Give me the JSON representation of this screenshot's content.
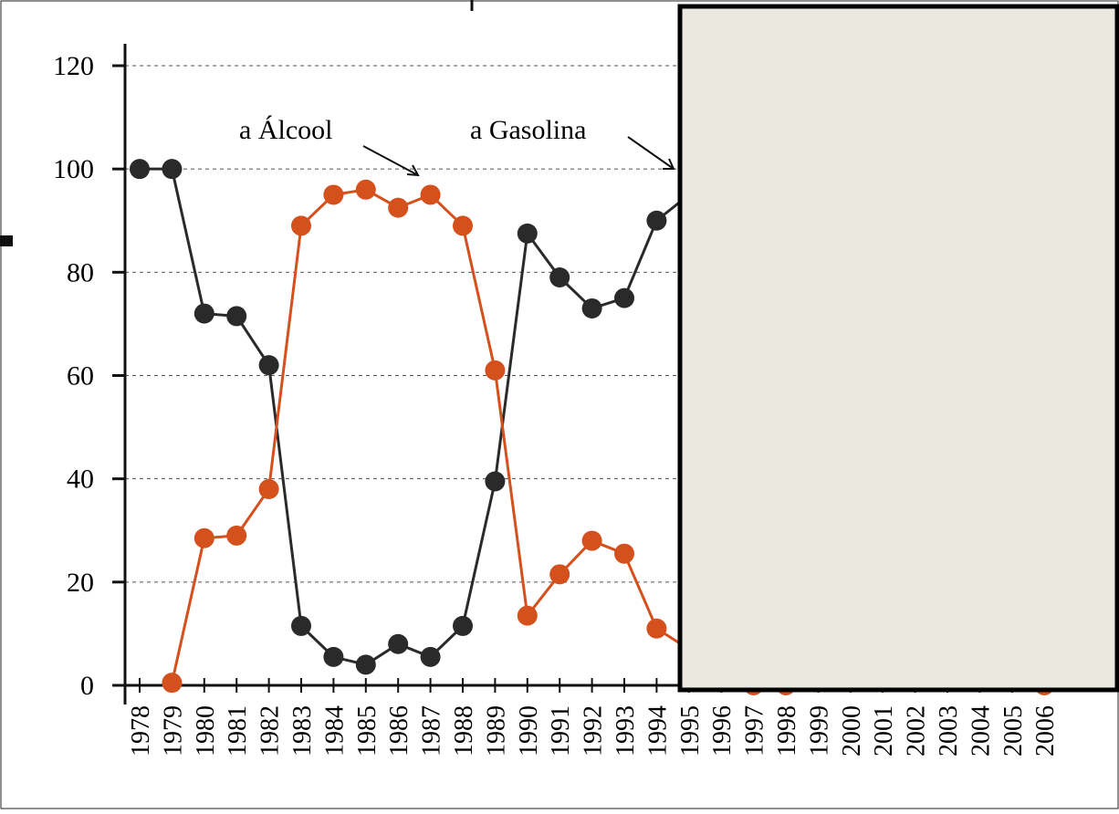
{
  "chart_data": {
    "type": "line",
    "categories": [
      "1978",
      "1979",
      "1980",
      "1981",
      "1982",
      "1983",
      "1984",
      "1985",
      "1986",
      "1987",
      "1988",
      "1989",
      "1990",
      "1991",
      "1992",
      "1993",
      "1994",
      "1995",
      "1996",
      "1997",
      "1998",
      "1999",
      "2000",
      "2001",
      "2002",
      "2003",
      "2004",
      "2005",
      "2006"
    ],
    "series": [
      {
        "name": "a Gasolina",
        "color": "#2a2a2a",
        "values": [
          100,
          100,
          72,
          71.5,
          62,
          11.5,
          5.5,
          4,
          8,
          5.5,
          11.5,
          39.5,
          87.5,
          79,
          73,
          75,
          90,
          95,
          null,
          null,
          null,
          null,
          null,
          null,
          null,
          null,
          null,
          null,
          null
        ]
      },
      {
        "name": "a Álcool",
        "color": "#d4501c",
        "values": [
          null,
          0.5,
          28.5,
          29,
          38,
          89,
          95,
          96,
          92.5,
          95,
          89,
          61,
          13.5,
          21.5,
          28,
          25.5,
          11,
          7,
          null,
          0,
          0,
          null,
          null,
          null,
          null,
          null,
          null,
          null,
          0
        ]
      }
    ],
    "ylim": [
      0,
      120
    ],
    "yticks": [
      0,
      20,
      40,
      60,
      80,
      100,
      120
    ],
    "grid": true
  }
}
